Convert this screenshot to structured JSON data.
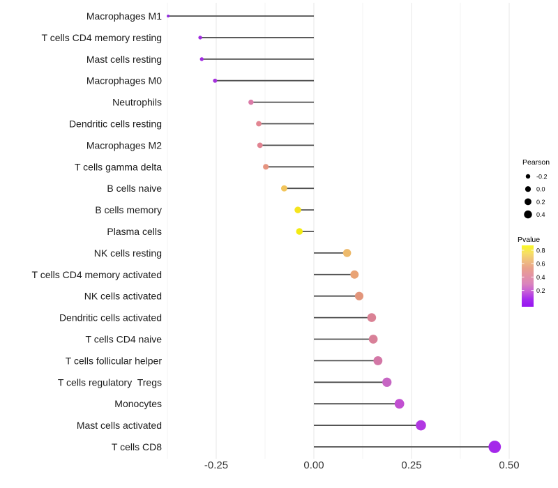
{
  "chart_data": {
    "type": "scatter",
    "variant": "horizontal-lollipop",
    "title": "",
    "xlabel": "",
    "ylabel": "",
    "xlim": [
      -0.42,
      0.52
    ],
    "grid": "vertical-major-and-minor, no horizontal grid, no axis lines",
    "x_tick_values": [
      -0.25,
      0.0,
      0.25,
      0.5
    ],
    "x_tick_labels": [
      "-0.25",
      "0.00",
      "0.25",
      "0.50"
    ],
    "x_minor_tick_values": [
      -0.375,
      -0.125,
      0.125,
      0.375
    ],
    "size_encoding": "Pearson",
    "color_encoding": "Pvalue",
    "points": [
      {
        "label": "Macrophages M1",
        "pearson": -0.373,
        "color": "#9129DE"
      },
      {
        "label": "T cells CD4 memory resting",
        "pearson": -0.291,
        "color": "#A02BE0"
      },
      {
        "label": "Mast cells resting",
        "pearson": -0.287,
        "color": "#A02BE0"
      },
      {
        "label": "Macrophages M0",
        "pearson": -0.253,
        "color": "#A532DC"
      },
      {
        "label": "Neutrophils",
        "pearson": -0.161,
        "color": "#DB7BA8"
      },
      {
        "label": "Dendritic cells resting",
        "pearson": -0.141,
        "color": "#E28692"
      },
      {
        "label": "Macrophages M2",
        "pearson": -0.138,
        "color": "#E18391"
      },
      {
        "label": "T cells gamma delta",
        "pearson": -0.123,
        "color": "#E69480"
      },
      {
        "label": "B cells naive",
        "pearson": -0.076,
        "color": "#F2C45A"
      },
      {
        "label": "B cells memory",
        "pearson": -0.041,
        "color": "#F5E41E"
      },
      {
        "label": "Plasma cells",
        "pearson": -0.037,
        "color": "#F3EB12"
      },
      {
        "label": "NK cells resting",
        "pearson": 0.085,
        "color": "#EDBA6C"
      },
      {
        "label": "T cells CD4 memory activated",
        "pearson": 0.104,
        "color": "#E9A375"
      },
      {
        "label": "NK cells activated",
        "pearson": 0.116,
        "color": "#E2957B"
      },
      {
        "label": "Dendritic cells activated",
        "pearson": 0.148,
        "color": "#DA8295"
      },
      {
        "label": "T cells CD4 naive",
        "pearson": 0.152,
        "color": "#D88098"
      },
      {
        "label": "T cells follicular helper",
        "pearson": 0.164,
        "color": "#D377A6"
      },
      {
        "label": "T cells regulatory  Tregs",
        "pearson": 0.187,
        "color": "#C666C3"
      },
      {
        "label": "Monocytes",
        "pearson": 0.219,
        "color": "#C14FD1"
      },
      {
        "label": "Mast cells activated",
        "pearson": 0.274,
        "color": "#B138E2"
      },
      {
        "label": "T cells CD8",
        "pearson": 0.463,
        "color": "#A428EA"
      }
    ],
    "legend_size": {
      "title": "Pearson",
      "labels": [
        "-0.2",
        "0.0",
        "0.2",
        "0.4"
      ],
      "dot_color": "#000000"
    },
    "legend_color": {
      "title": "Pvalue",
      "labels": [
        "0.8",
        "0.6",
        "0.4",
        "0.2"
      ],
      "gradient_stops": [
        "#FAF921",
        "#F6DE66",
        "#EFBE7E",
        "#E9A18D",
        "#E392A6",
        "#DA85BC",
        "#C75ED7",
        "#A52BEE",
        "#9615F0"
      ]
    },
    "style": {
      "stem_color": "#4D4D4D",
      "grid_major_color": "#E7E7E7",
      "grid_minor_color": "#F3F3F3",
      "background": "#FFFFFF"
    }
  }
}
